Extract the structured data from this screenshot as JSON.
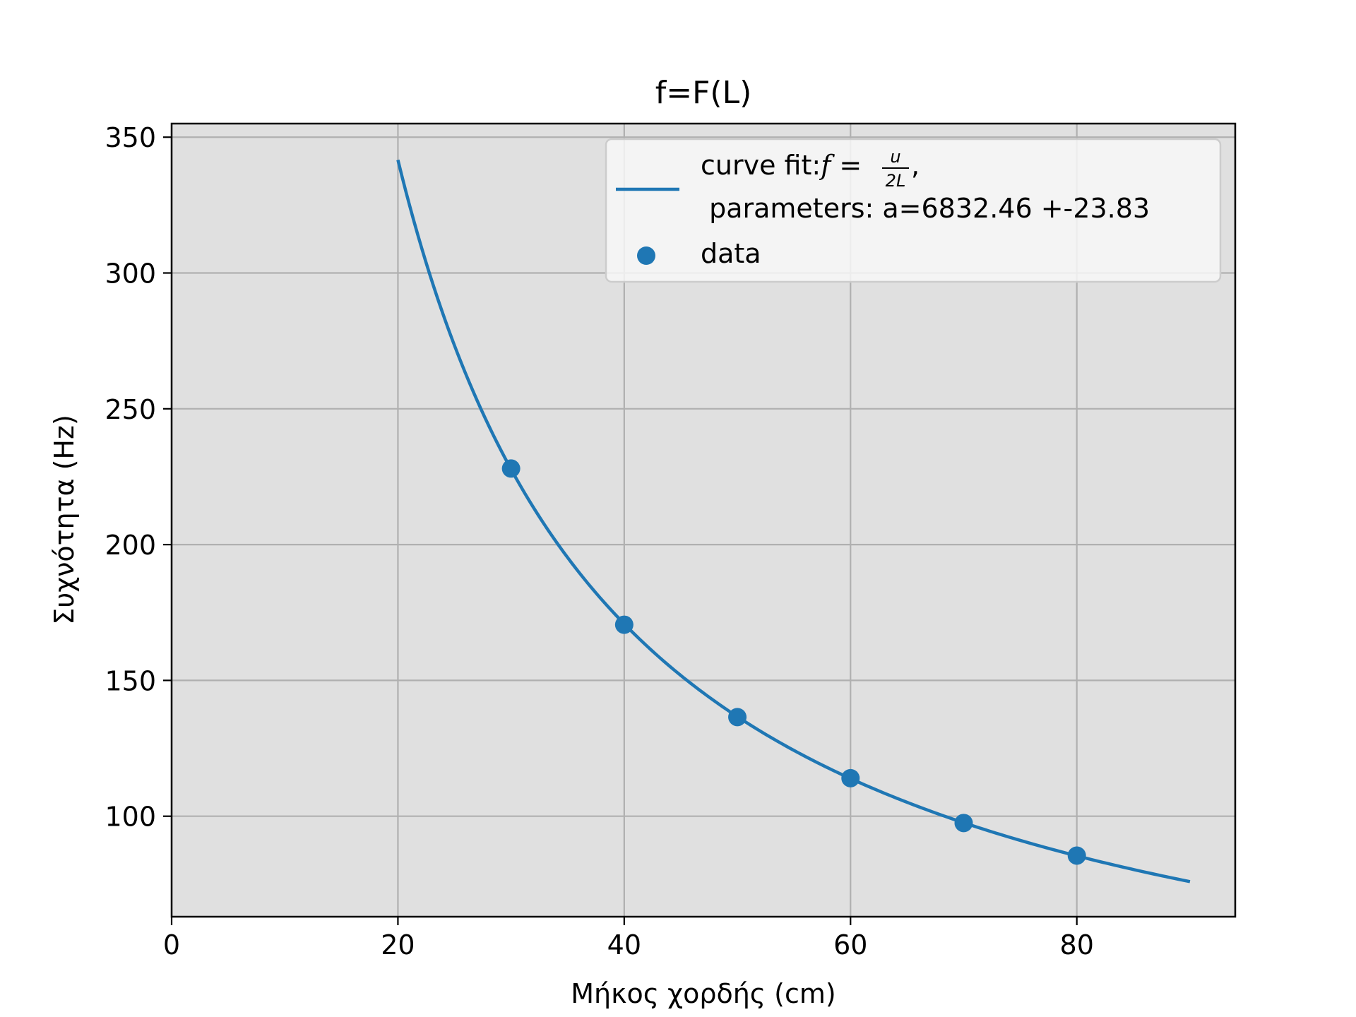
{
  "chart_data": {
    "type": "scatter",
    "title": "f=F(L)",
    "xlabel": "Μήκος χορδής (cm)",
    "ylabel": "Συχνότητα (Hz)",
    "xlim": [
      0,
      94
    ],
    "ylim": [
      63,
      355
    ],
    "xticks": [
      0,
      20,
      40,
      60,
      80
    ],
    "yticks": [
      100,
      150,
      200,
      250,
      300,
      350
    ],
    "xtick_labels": [
      "0",
      "20",
      "40",
      "60",
      "80"
    ],
    "ytick_labels": [
      "100",
      "150",
      "200",
      "250",
      "300",
      "350"
    ],
    "grid": true,
    "legend_position": "top-right",
    "series": [
      {
        "name": "data",
        "kind": "scatter",
        "x": [
          30,
          40,
          50,
          60,
          70,
          80
        ],
        "y": [
          228,
          170.5,
          136.5,
          114,
          97.5,
          85.5
        ]
      },
      {
        "name": "curve fit",
        "kind": "line",
        "model": "a/x",
        "a": 6832.46,
        "x_range": [
          20,
          90
        ]
      }
    ],
    "legend": {
      "fit_prefix": "curve fit:",
      "fit_formula_lhs": "f",
      "fit_formula_eq": " = ",
      "fit_formula_num": "u",
      "fit_formula_den": "2L",
      "fit_formula_suffix": ",",
      "fit_params": " parameters: a=6832.46 +-23.83",
      "data_label": "data"
    },
    "colors": {
      "series": "#1f77b4",
      "axes_bg": "#e0e0e0",
      "grid": "#b0b0b0",
      "legend_bg": "#f7f7f7",
      "legend_border": "#cccccc"
    }
  }
}
